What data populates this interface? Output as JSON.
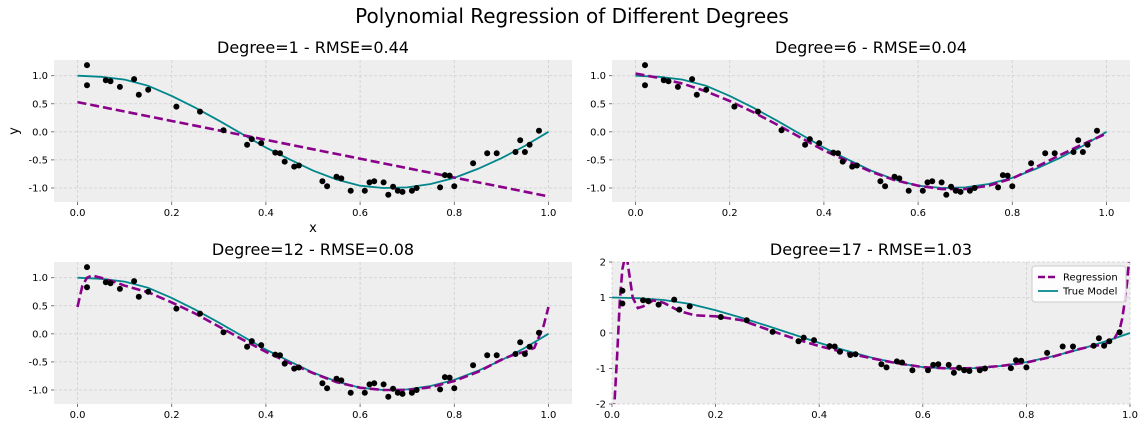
{
  "figure": {
    "suptitle": "Polynomial Regression of Different Degrees",
    "colors": {
      "panel_bg": "#eeeeee",
      "grid": "#cfcfcf",
      "points": "#000000",
      "regression": "#8b008b",
      "true_model": "#00868b"
    }
  },
  "chart_data": [
    {
      "type": "scatter+line",
      "title": "Degree=1 - RMSE=0.44",
      "xlabel": "x",
      "ylabel": "y",
      "xlim": [
        -0.05,
        1.05
      ],
      "ylim": [
        -1.25,
        1.28
      ],
      "xticks": [
        "0.0",
        "0.2",
        "0.4",
        "0.6",
        "0.8",
        "1.0"
      ],
      "yticks": [
        "-1.0",
        "-0.5",
        "0.0",
        "0.5",
        "1.0"
      ],
      "degree": 1,
      "grid": true,
      "legend": null
    },
    {
      "type": "scatter+line",
      "title": "Degree=6 - RMSE=0.04",
      "xlabel": "",
      "ylabel": "",
      "xlim": [
        -0.05,
        1.05
      ],
      "ylim": [
        -1.25,
        1.28
      ],
      "xticks": [
        "0.0",
        "0.2",
        "0.4",
        "0.6",
        "0.8",
        "1.0"
      ],
      "yticks": [
        "-1.0",
        "-0.5",
        "0.0",
        "0.5",
        "1.0"
      ],
      "degree": 6,
      "grid": true,
      "legend": null
    },
    {
      "type": "scatter+line",
      "title": "Degree=12 - RMSE=0.08",
      "xlabel": "",
      "ylabel": "",
      "xlim": [
        -0.05,
        1.05
      ],
      "ylim": [
        -1.25,
        1.28
      ],
      "xticks": [
        "0.0",
        "0.2",
        "0.4",
        "0.6",
        "0.8",
        "1.0"
      ],
      "yticks": [
        "-1.0",
        "-0.5",
        "0.0",
        "0.5",
        "1.0"
      ],
      "degree": 12,
      "grid": true,
      "legend": null
    },
    {
      "type": "scatter+line",
      "title": "Degree=17 - RMSE=1.03",
      "xlabel": "",
      "ylabel": "",
      "xlim": [
        0,
        1
      ],
      "ylim": [
        -2,
        2
      ],
      "xticks": [
        "0.0",
        "0.2",
        "0.4",
        "0.6",
        "0.8",
        "1.0"
      ],
      "yticks": [
        "-2",
        "-1",
        "0",
        "1",
        "2"
      ],
      "degree": 17,
      "grid": true,
      "legend": {
        "placement": "top-right",
        "entries": [
          "Regression",
          "True Model"
        ]
      }
    }
  ],
  "samples": {
    "x": [
      0.02,
      0.02,
      0.06,
      0.07,
      0.09,
      0.12,
      0.13,
      0.15,
      0.21,
      0.26,
      0.31,
      0.36,
      0.37,
      0.39,
      0.42,
      0.43,
      0.44,
      0.46,
      0.47,
      0.52,
      0.53,
      0.55,
      0.56,
      0.58,
      0.61,
      0.62,
      0.63,
      0.65,
      0.66,
      0.67,
      0.68,
      0.69,
      0.71,
      0.72,
      0.77,
      0.78,
      0.79,
      0.8,
      0.84,
      0.87,
      0.89,
      0.93,
      0.94,
      0.95,
      0.96,
      0.98
    ],
    "y": [
      1.19,
      0.83,
      0.92,
      0.9,
      0.8,
      0.94,
      0.66,
      0.75,
      0.45,
      0.36,
      0.03,
      -0.23,
      -0.13,
      -0.2,
      -0.37,
      -0.38,
      -0.53,
      -0.62,
      -0.6,
      -0.88,
      -0.97,
      -0.8,
      -0.83,
      -1.05,
      -1.05,
      -0.9,
      -0.88,
      -0.9,
      -1.12,
      -0.98,
      -1.05,
      -1.07,
      -1.05,
      -1.0,
      -0.99,
      -0.77,
      -0.78,
      -0.97,
      -0.56,
      -0.38,
      -0.38,
      -0.36,
      -0.15,
      -0.36,
      -0.23,
      0.02
    ]
  },
  "curves": {
    "true_model": {
      "name": "True Model",
      "x": [
        0,
        0.05,
        0.1,
        0.15,
        0.2,
        0.25,
        0.3,
        0.35,
        0.4,
        0.45,
        0.5,
        0.55,
        0.6,
        0.65,
        0.7,
        0.75,
        0.8,
        0.85,
        0.9,
        0.95,
        1.0
      ],
      "y": [
        1.0,
        0.98,
        0.93,
        0.82,
        0.64,
        0.43,
        0.2,
        -0.04,
        -0.28,
        -0.49,
        -0.69,
        -0.85,
        -0.96,
        -1.0,
        -0.99,
        -0.93,
        -0.82,
        -0.66,
        -0.47,
        -0.25,
        0.0
      ]
    },
    "regression": [
      {
        "degree": 1,
        "x": [
          0,
          1
        ],
        "y": [
          0.53,
          -1.15
        ]
      },
      {
        "degree": 6,
        "x": [
          0,
          0.05,
          0.1,
          0.15,
          0.2,
          0.25,
          0.3,
          0.35,
          0.4,
          0.45,
          0.5,
          0.55,
          0.6,
          0.65,
          0.7,
          0.75,
          0.8,
          0.85,
          0.9,
          0.95,
          1.0
        ],
        "y": [
          1.04,
          0.96,
          0.86,
          0.72,
          0.55,
          0.35,
          0.13,
          -0.1,
          -0.33,
          -0.52,
          -0.71,
          -0.86,
          -0.96,
          -1.02,
          -1.02,
          -0.96,
          -0.83,
          -0.63,
          -0.42,
          -0.22,
          -0.03
        ]
      },
      {
        "degree": 12,
        "x": [
          0,
          0.01,
          0.02,
          0.03,
          0.05,
          0.08,
          0.1,
          0.15,
          0.2,
          0.25,
          0.3,
          0.35,
          0.4,
          0.45,
          0.5,
          0.55,
          0.6,
          0.65,
          0.7,
          0.75,
          0.8,
          0.85,
          0.9,
          0.93,
          0.95,
          0.97,
          0.99,
          1.0
        ],
        "y": [
          0.48,
          0.85,
          1.0,
          1.04,
          1.0,
          0.92,
          0.86,
          0.74,
          0.56,
          0.36,
          0.13,
          -0.1,
          -0.32,
          -0.52,
          -0.7,
          -0.86,
          -0.96,
          -1.0,
          -1.0,
          -0.95,
          -0.84,
          -0.68,
          -0.46,
          -0.36,
          -0.32,
          -0.25,
          0.15,
          0.48
        ]
      },
      {
        "degree": 17,
        "x": [
          0,
          0.005,
          0.01,
          0.015,
          0.02,
          0.025,
          0.03,
          0.035,
          0.04,
          0.05,
          0.06,
          0.08,
          0.1,
          0.13,
          0.16,
          0.2,
          0.25,
          0.3,
          0.35,
          0.4,
          0.45,
          0.5,
          0.55,
          0.6,
          0.65,
          0.7,
          0.75,
          0.8,
          0.85,
          0.9,
          0.93,
          0.95,
          0.96,
          0.97,
          0.98,
          0.985,
          0.99,
          0.995,
          1.0
        ],
        "y": [
          -2.6,
          -1.9,
          -0.6,
          0.9,
          1.8,
          2.15,
          2.0,
          1.5,
          1.0,
          0.7,
          0.75,
          0.92,
          0.85,
          0.62,
          0.5,
          0.47,
          0.36,
          0.1,
          -0.15,
          -0.37,
          -0.55,
          -0.71,
          -0.85,
          -0.96,
          -1.0,
          -0.99,
          -0.93,
          -0.83,
          -0.67,
          -0.46,
          -0.36,
          -0.33,
          -0.25,
          -0.15,
          0.1,
          0.4,
          0.9,
          1.5,
          2.4
        ]
      }
    ]
  }
}
